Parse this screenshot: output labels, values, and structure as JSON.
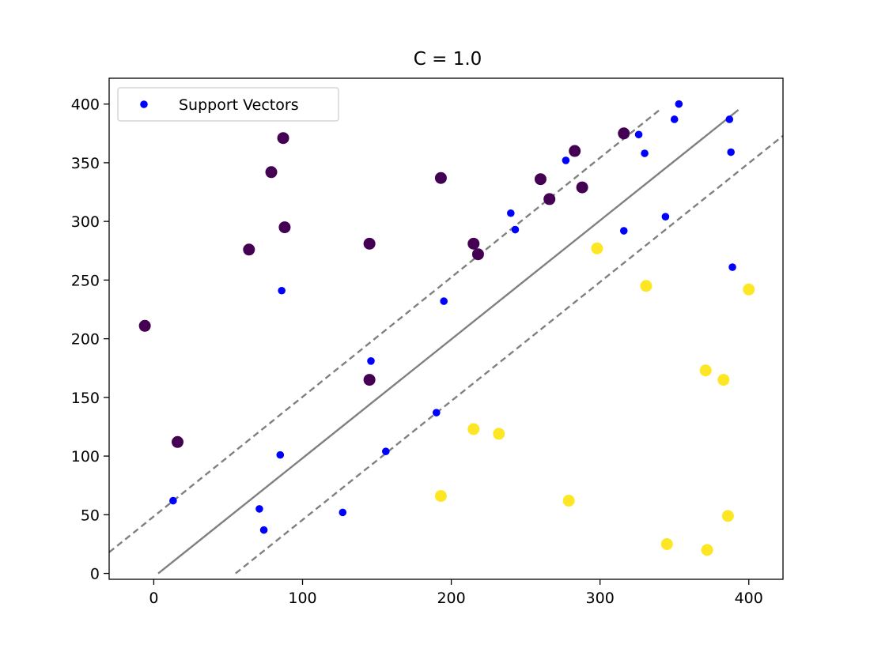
{
  "chart_data": {
    "type": "scatter",
    "title": "C = 1.0",
    "xlabel": "",
    "ylabel": "",
    "xlim": [
      -30,
      423
    ],
    "ylim": [
      -5,
      422
    ],
    "xticks": [
      0,
      100,
      200,
      300,
      400
    ],
    "yticks": [
      0,
      50,
      100,
      150,
      200,
      250,
      300,
      350,
      400
    ],
    "xtick_labels": [
      "0",
      "100",
      "200",
      "300",
      "400"
    ],
    "ytick_labels": [
      "0",
      "50",
      "100",
      "150",
      "200",
      "250",
      "300",
      "350",
      "400"
    ],
    "grid": false,
    "legend": {
      "placement": "top-left",
      "entries": [
        "Support Vectors"
      ]
    },
    "colors": {
      "class_a": "#440154",
      "class_b": "#fde725",
      "support": "#0000ff",
      "line": "#808080"
    },
    "class_a_points": [
      [
        -6,
        211
      ],
      [
        16,
        112
      ],
      [
        64,
        276
      ],
      [
        79,
        342
      ],
      [
        87,
        371
      ],
      [
        88,
        295
      ],
      [
        145,
        281
      ],
      [
        145,
        165
      ],
      [
        193,
        337
      ],
      [
        215,
        281
      ],
      [
        218,
        272
      ],
      [
        260,
        336
      ],
      [
        266,
        319
      ],
      [
        283,
        360
      ],
      [
        288,
        329
      ],
      [
        316,
        375
      ]
    ],
    "class_b_points": [
      [
        193,
        66
      ],
      [
        215,
        123
      ],
      [
        232,
        119
      ],
      [
        279,
        62
      ],
      [
        298,
        277
      ],
      [
        331,
        245
      ],
      [
        345,
        25
      ],
      [
        371,
        173
      ],
      [
        372,
        20
      ],
      [
        383,
        165
      ],
      [
        386,
        49
      ],
      [
        400,
        242
      ]
    ],
    "support_vectors": [
      [
        13,
        62
      ],
      [
        71,
        55
      ],
      [
        74,
        37
      ],
      [
        85,
        101
      ],
      [
        86,
        241
      ],
      [
        127,
        52
      ],
      [
        146,
        181
      ],
      [
        156,
        104
      ],
      [
        190,
        137
      ],
      [
        195,
        232
      ],
      [
        240,
        307
      ],
      [
        243,
        293
      ],
      [
        277,
        352
      ],
      [
        316,
        292
      ],
      [
        326,
        374
      ],
      [
        330,
        358
      ],
      [
        344,
        304
      ],
      [
        350,
        387
      ],
      [
        353,
        400
      ],
      [
        387,
        387
      ],
      [
        388,
        359
      ],
      [
        389,
        261
      ]
    ],
    "decision_boundary": {
      "points": [
        [
          3,
          0
        ],
        [
          393,
          395
        ]
      ],
      "style": "solid"
    },
    "margins": [
      {
        "points": [
          [
            -30,
            18
          ],
          [
            341,
            396
          ]
        ],
        "style": "dashed"
      },
      {
        "points": [
          [
            55,
            0
          ],
          [
            423,
            373
          ]
        ],
        "style": "dashed"
      }
    ]
  }
}
